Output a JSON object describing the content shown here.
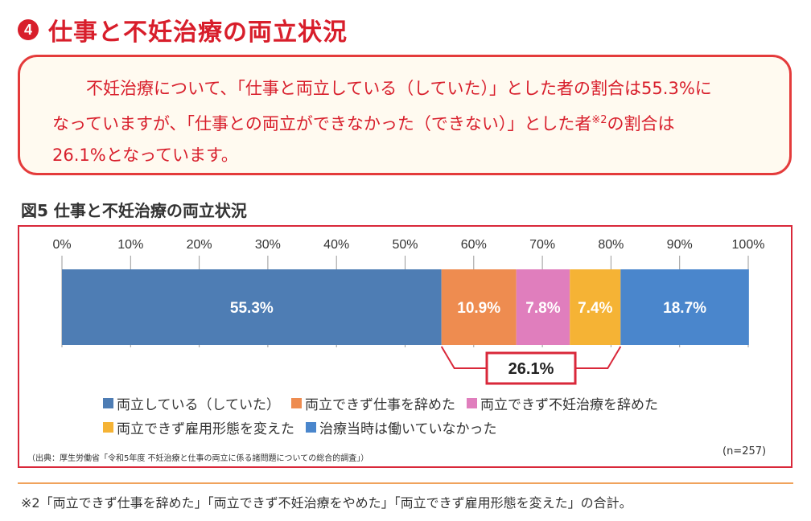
{
  "heading": {
    "number": "4",
    "text": "仕事と不妊治療の両立状況"
  },
  "summary": {
    "line1": "不妊治療について、「仕事と両立している（していた）」とした者の割合は55.3%に",
    "line2_before": "なっていますが、「仕事との両立ができなかった（できない）」とした者",
    "line2_sup": "※2",
    "line2_after": "の割合は",
    "line3": "26.1%となっています。"
  },
  "figure_title": "図5 仕事と不妊治療の両立状況",
  "chart_data": {
    "type": "bar",
    "orientation": "horizontal-stacked-100",
    "x_ticks": [
      "0%",
      "10%",
      "20%",
      "30%",
      "40%",
      "50%",
      "60%",
      "70%",
      "80%",
      "90%",
      "100%"
    ],
    "xlim": [
      0,
      100
    ],
    "grid": true,
    "series": [
      {
        "name": "両立している（していた）",
        "value": 55.3,
        "label": "55.3%",
        "color": "#4e7db4"
      },
      {
        "name": "両立できず仕事を辞めた",
        "value": 10.9,
        "label": "10.9%",
        "color": "#ee8c50"
      },
      {
        "name": "両立できず不妊治療を辞めた",
        "value": 7.8,
        "label": "7.8%",
        "color": "#e07ebd"
      },
      {
        "name": "両立できず雇用形態を変えた",
        "value": 7.4,
        "label": "7.4%",
        "color": "#f5b335"
      },
      {
        "name": "治療当時は働いていなかった",
        "value": 18.7,
        "label": "18.7%",
        "color": "#4a86cc"
      }
    ],
    "bracket": {
      "from": 55.3,
      "to": 81.4,
      "label": "26.1%"
    },
    "legend_placement": "bottom",
    "source": "（出典：厚生労働省「令和5年度 不妊治療と仕事の両立に係る諸問題についての総合的調査」）",
    "n_label": "(n=257)"
  },
  "footnote": "※2「両立できず仕事を辞めた」「両立できず不妊治療をやめた」「両立できず雇用形態を変えた」の合計。"
}
